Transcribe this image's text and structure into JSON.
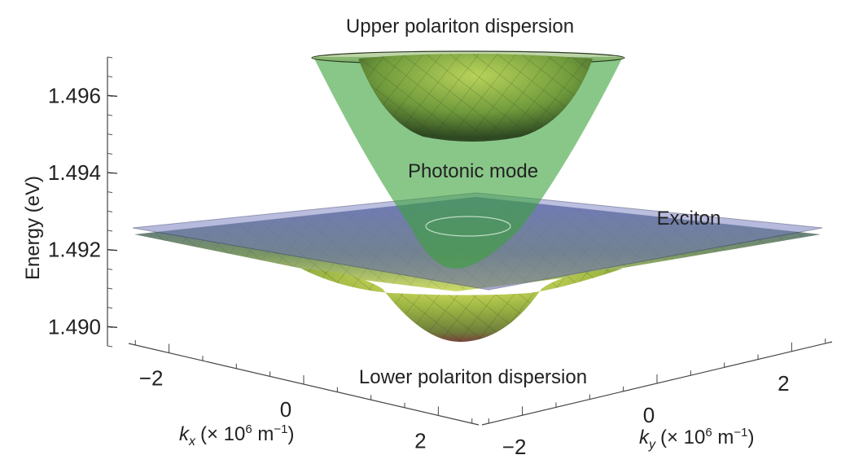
{
  "chart_data": {
    "type": "surface3d",
    "title": "",
    "zlabel": "Energy (eV)",
    "xlabel": {
      "var": "k",
      "sub": "x",
      "unit_pre": "(× 10",
      "unit_exp": "6",
      "unit_mid": " m",
      "unit_exp2": "−1",
      "unit_post": ")"
    },
    "ylabel": {
      "var": "k",
      "sub": "y",
      "unit_pre": "(× 10",
      "unit_exp": "6",
      "unit_mid": " m",
      "unit_exp2": "−1",
      "unit_post": ")"
    },
    "zticks": [
      1.49,
      1.492,
      1.494,
      1.496
    ],
    "ztick_labels": [
      "1.490",
      "1.492",
      "1.494",
      "1.496"
    ],
    "xticks": [
      -2,
      0,
      2
    ],
    "xtick_labels": [
      "−2",
      "0",
      "2"
    ],
    "yticks": [
      -2,
      0,
      2
    ],
    "ytick_labels": [
      "−2",
      "0",
      "2"
    ],
    "xlim": [
      -2.6,
      2.6
    ],
    "ylim": [
      -2.6,
      2.6
    ],
    "zlim": [
      1.4895,
      1.497
    ],
    "surfaces": [
      {
        "name": "Upper polariton dispersion",
        "min_energy": 1.4954,
        "color": "#6f9a3c"
      },
      {
        "name": "Photonic mode",
        "min_energy": 1.492,
        "color": "#3f9f3f"
      },
      {
        "name": "Exciton",
        "energy": 1.493,
        "color": "#7f86c4"
      },
      {
        "name": "Lower polariton dispersion",
        "min_energy": 1.4899,
        "color": "#b9c94a"
      }
    ],
    "annotations": [
      {
        "text": "Upper polariton dispersion"
      },
      {
        "text": "Photonic mode"
      },
      {
        "text": "Exciton"
      },
      {
        "text": "Lower polariton dispersion"
      }
    ],
    "grid": false,
    "legend": "none"
  }
}
